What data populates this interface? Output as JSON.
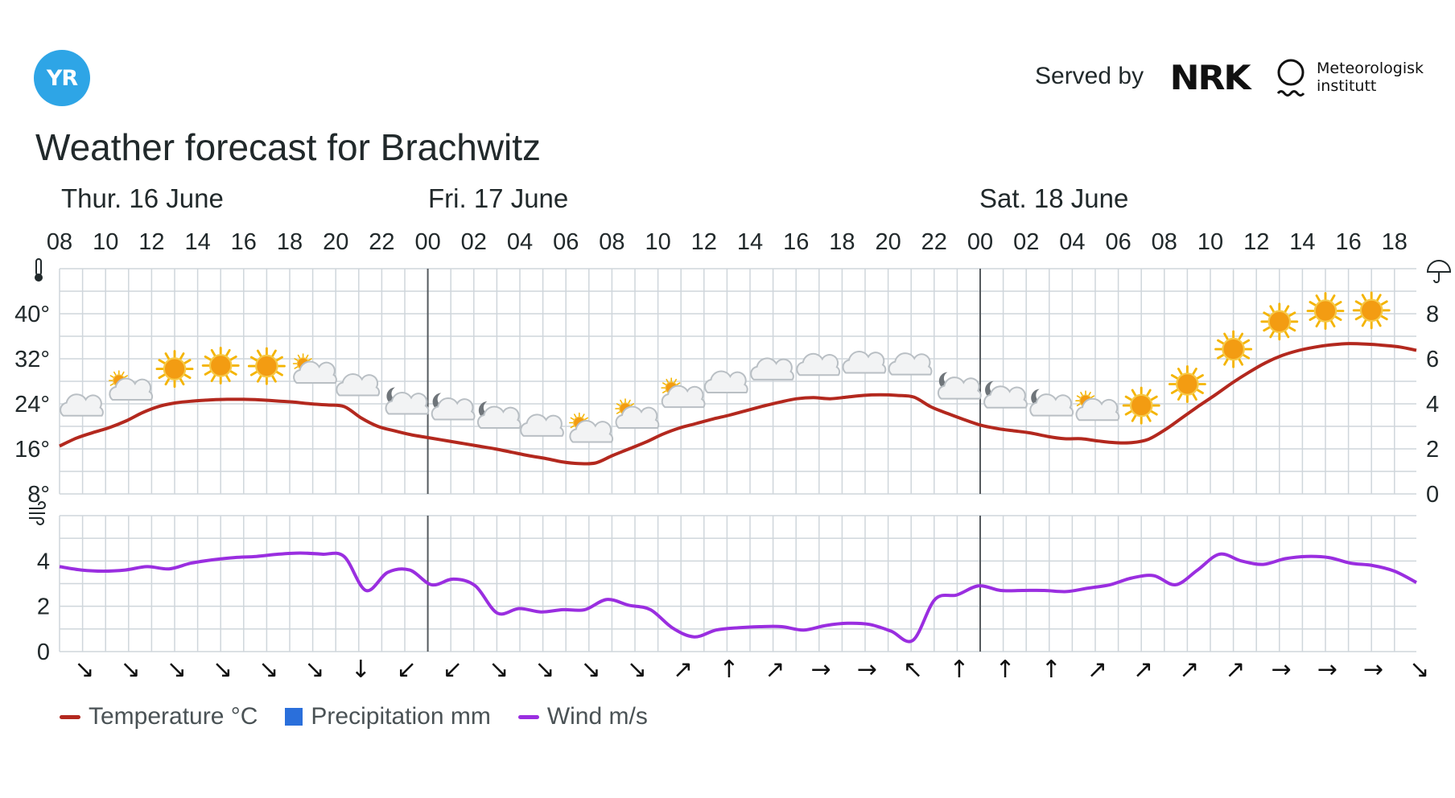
{
  "header": {
    "logo_text": "YR",
    "served_by_label": "Served by",
    "nrk_logo_text": "NRK",
    "met_logo_lines": [
      "Meteorologisk",
      "institutt"
    ],
    "title": "Weather forecast for Brachwitz"
  },
  "days": [
    "Thur. 16 June",
    "Fri. 17 June",
    "Sat. 18 June"
  ],
  "legend": [
    {
      "label": "Temperature °C",
      "color": "#b3281e",
      "kind": "line"
    },
    {
      "label": "Precipitation mm",
      "color": "#2a6fdb",
      "kind": "box"
    },
    {
      "label": "Wind m/s",
      "color": "#9a2ee0",
      "kind": "line"
    }
  ],
  "colors": {
    "temperature": "#b3281e",
    "wind": "#9a2ee0",
    "precipitation": "#2a6fdb",
    "grid": "#cfd6db",
    "day_divider": "#555a5e",
    "brand": "#2ea5e6"
  },
  "chart_data": {
    "type": "line",
    "x_ticks": [
      "08",
      "10",
      "12",
      "14",
      "16",
      "18",
      "20",
      "22",
      "00",
      "02",
      "04",
      "06",
      "08",
      "10",
      "12",
      "14",
      "16",
      "18",
      "20",
      "22",
      "00",
      "02",
      "04",
      "06",
      "08",
      "10",
      "12",
      "14",
      "16",
      "18"
    ],
    "day_boundaries": [
      "Fri. 17 June 00",
      "Sat. 18 June 00"
    ],
    "temperature_panel": {
      "y_ticks": [
        "8°",
        "16°",
        "24°",
        "32°",
        "40°"
      ],
      "ylim": [
        8,
        48
      ],
      "precip_ticks": [
        "0",
        "2",
        "4",
        "6",
        "8"
      ],
      "precip_ylim": [
        0,
        10
      ],
      "unit_icon_left": "thermometer-icon",
      "unit_icon_right": "umbrella-icon",
      "series": [
        {
          "name": "Temperature °C",
          "values": [
            16.5,
            17.9,
            18.9,
            19.8,
            21.0,
            22.5,
            23.6,
            24.2,
            24.5,
            24.7,
            24.8,
            24.8,
            24.7,
            24.5,
            24.3,
            24.0,
            23.8,
            23.5,
            21.5,
            20.0,
            19.2,
            18.5,
            18.0,
            17.5,
            17.0,
            16.5,
            16.0,
            15.4,
            14.8,
            14.3,
            13.7,
            13.4,
            13.5,
            14.8,
            16.0,
            17.2,
            18.6,
            19.7,
            20.5,
            21.3,
            22.0,
            22.8,
            23.6,
            24.3,
            24.9,
            25.1,
            24.9,
            25.2,
            25.5,
            25.6,
            25.5,
            25.2,
            23.5,
            22.3,
            21.2,
            20.2,
            19.6,
            19.2,
            18.8,
            18.2,
            17.8,
            17.8,
            17.4,
            17.1,
            17.1,
            17.7,
            19.4,
            21.5,
            23.6,
            25.6,
            27.7,
            29.6,
            31.3,
            32.6,
            33.5,
            34.1,
            34.5,
            34.7,
            34.6,
            34.4,
            34.1,
            33.5
          ]
        },
        {
          "name": "Precipitation mm",
          "values": []
        }
      ],
      "weather_symbols": [
        "cloudy",
        "partly-cloudy-day",
        "clear-day",
        "clear-day",
        "clear-day",
        "partly-cloudy-day",
        "cloudy",
        "partly-cloudy-night",
        "partly-cloudy-night",
        "partly-cloudy-night",
        "cloudy",
        "partly-cloudy-day",
        "partly-cloudy-day",
        "partly-cloudy-day",
        "cloudy",
        "cloudy",
        "cloudy",
        "cloudy",
        "cloudy",
        "partly-cloudy-night",
        "partly-cloudy-night",
        "partly-cloudy-night",
        "partly-cloudy-day",
        "clear-day",
        "clear-day",
        "clear-day",
        "clear-day",
        "clear-day",
        "clear-day"
      ]
    },
    "wind_panel": {
      "y_ticks": [
        "0",
        "2",
        "4"
      ],
      "ylim": [
        0,
        6
      ],
      "unit_icon": "wind-icon",
      "series": [
        {
          "name": "Wind m/s",
          "values": [
            3.75,
            3.6,
            3.55,
            3.6,
            3.75,
            3.65,
            3.9,
            4.05,
            4.15,
            4.2,
            4.3,
            4.35,
            4.3,
            4.2,
            2.7,
            3.5,
            3.6,
            2.95,
            3.2,
            2.9,
            1.7,
            1.9,
            1.75,
            1.85,
            1.85,
            2.3,
            2.05,
            1.85,
            1.05,
            0.65,
            0.95,
            1.05,
            1.1,
            1.1,
            0.95,
            1.15,
            1.25,
            1.2,
            0.9,
            0.5,
            2.3,
            2.5,
            2.9,
            2.7,
            2.7,
            2.7,
            2.65,
            2.8,
            2.95,
            3.25,
            3.35,
            2.95,
            3.6,
            4.3,
            4.0,
            3.85,
            4.1,
            4.2,
            4.15,
            3.9,
            3.8,
            3.55,
            3.05
          ]
        }
      ],
      "wind_direction_arrows": [
        "↘",
        "↘",
        "↘",
        "↘",
        "↘",
        "↘",
        "↓",
        "↙",
        "↙",
        "↘",
        "↘",
        "↘",
        "↘",
        "↗",
        "↑",
        "↗",
        "→",
        "→",
        "↖",
        "↑",
        "↑",
        "↑",
        "↗",
        "↗",
        "↗",
        "↗",
        "→",
        "→",
        "→",
        "↘"
      ]
    }
  }
}
